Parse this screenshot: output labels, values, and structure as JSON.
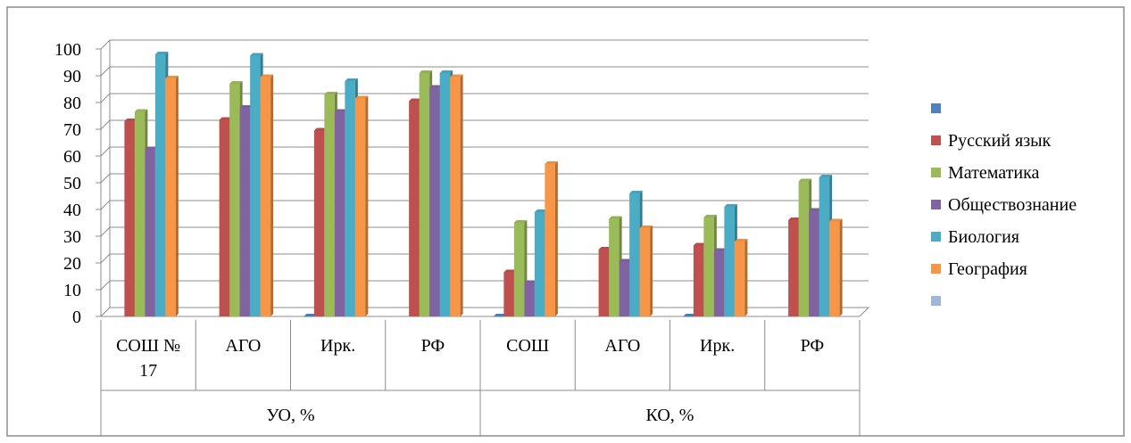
{
  "chart_data": {
    "type": "bar",
    "ylim": [
      0,
      100
    ],
    "yticks": [
      0,
      10,
      20,
      30,
      40,
      50,
      60,
      70,
      80,
      90,
      100
    ],
    "grid": true,
    "legend_position": "right",
    "groups": [
      {
        "label": "УО, %",
        "categories": [
          "СОШ № 17",
          "АГО",
          "Ирк.",
          "РФ"
        ]
      },
      {
        "label": "КО, %",
        "categories": [
          "СОШ",
          "АГО",
          "Ирк.",
          "РФ"
        ]
      }
    ],
    "categories": [
      "СОШ № 17",
      "АГО",
      "Ирк.",
      "РФ",
      "СОШ",
      "АГО",
      "Ирк.",
      "РФ"
    ],
    "series": [
      {
        "name": "",
        "color": "#4F81BD",
        "values": [
          null,
          null,
          0,
          null,
          0,
          null,
          0,
          null
        ]
      },
      {
        "name": "Русский язык",
        "color": "#C0504D",
        "values": [
          73,
          73.5,
          69.5,
          80.5,
          16.5,
          25,
          26.5,
          36
        ]
      },
      {
        "name": "Математика",
        "color": "#9BBB59",
        "values": [
          76.5,
          87,
          83,
          91,
          35,
          36.5,
          37,
          50.5
        ]
      },
      {
        "name": "Обществознание",
        "color": "#8064A2",
        "values": [
          62.5,
          78,
          76.5,
          85.5,
          12.5,
          20.5,
          24.5,
          39.5
        ]
      },
      {
        "name": "Биология",
        "color": "#4BACC6",
        "values": [
          98,
          97.5,
          88,
          91,
          39,
          46,
          41,
          52
        ]
      },
      {
        "name": "География",
        "color": "#F79646",
        "values": [
          89,
          89.5,
          81.5,
          89.5,
          57,
          33,
          28,
          35.5
        ]
      },
      {
        "name": "",
        "color": "#9EB6D8",
        "values": [
          null,
          null,
          null,
          null,
          null,
          null,
          null,
          null
        ]
      }
    ]
  }
}
